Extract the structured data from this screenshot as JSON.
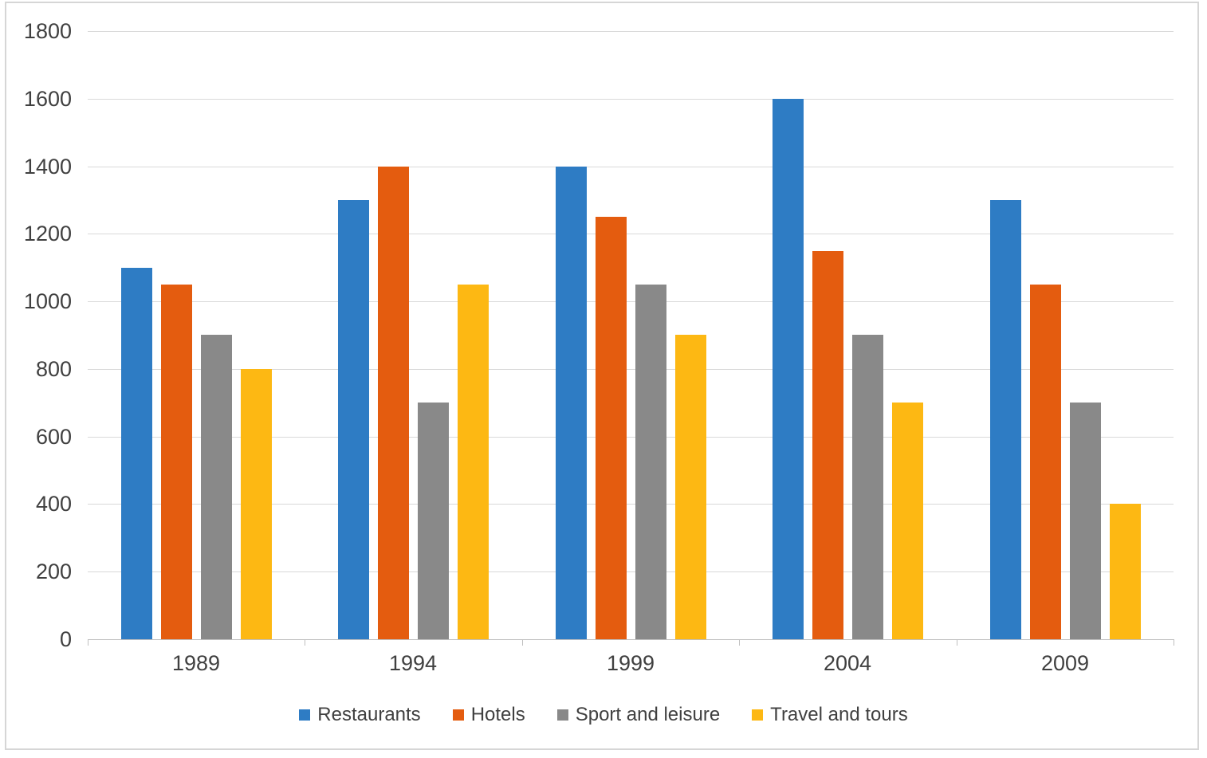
{
  "figure": {
    "background": "#FFFFFF",
    "border_color": "#D6D6D6"
  },
  "chart_data": {
    "type": "bar",
    "title": "",
    "xlabel": "",
    "ylabel": "",
    "categories": [
      "1989",
      "1994",
      "1999",
      "2004",
      "2009"
    ],
    "series": [
      {
        "name": "Restaurants",
        "color": "#2E7CC4",
        "values": [
          1100,
          1300,
          1400,
          1600,
          1300
        ]
      },
      {
        "name": "Hotels",
        "color": "#E45C0F",
        "values": [
          1050,
          1400,
          1250,
          1150,
          1050
        ]
      },
      {
        "name": "Sport and leisure",
        "color": "#898989",
        "values": [
          900,
          700,
          1050,
          900,
          700
        ]
      },
      {
        "name": "Travel and tours",
        "color": "#FDB813",
        "values": [
          800,
          1050,
          900,
          700,
          400
        ]
      }
    ],
    "ylim": [
      0,
      1800
    ],
    "y_ticks": [
      0,
      200,
      400,
      600,
      800,
      1000,
      1200,
      1400,
      1600,
      1800
    ],
    "grid": true,
    "legend_position": "bottom",
    "gridline_color": "#D9D9D9",
    "axis_line_color": "#BFBFBF",
    "text_color": "#404040"
  }
}
